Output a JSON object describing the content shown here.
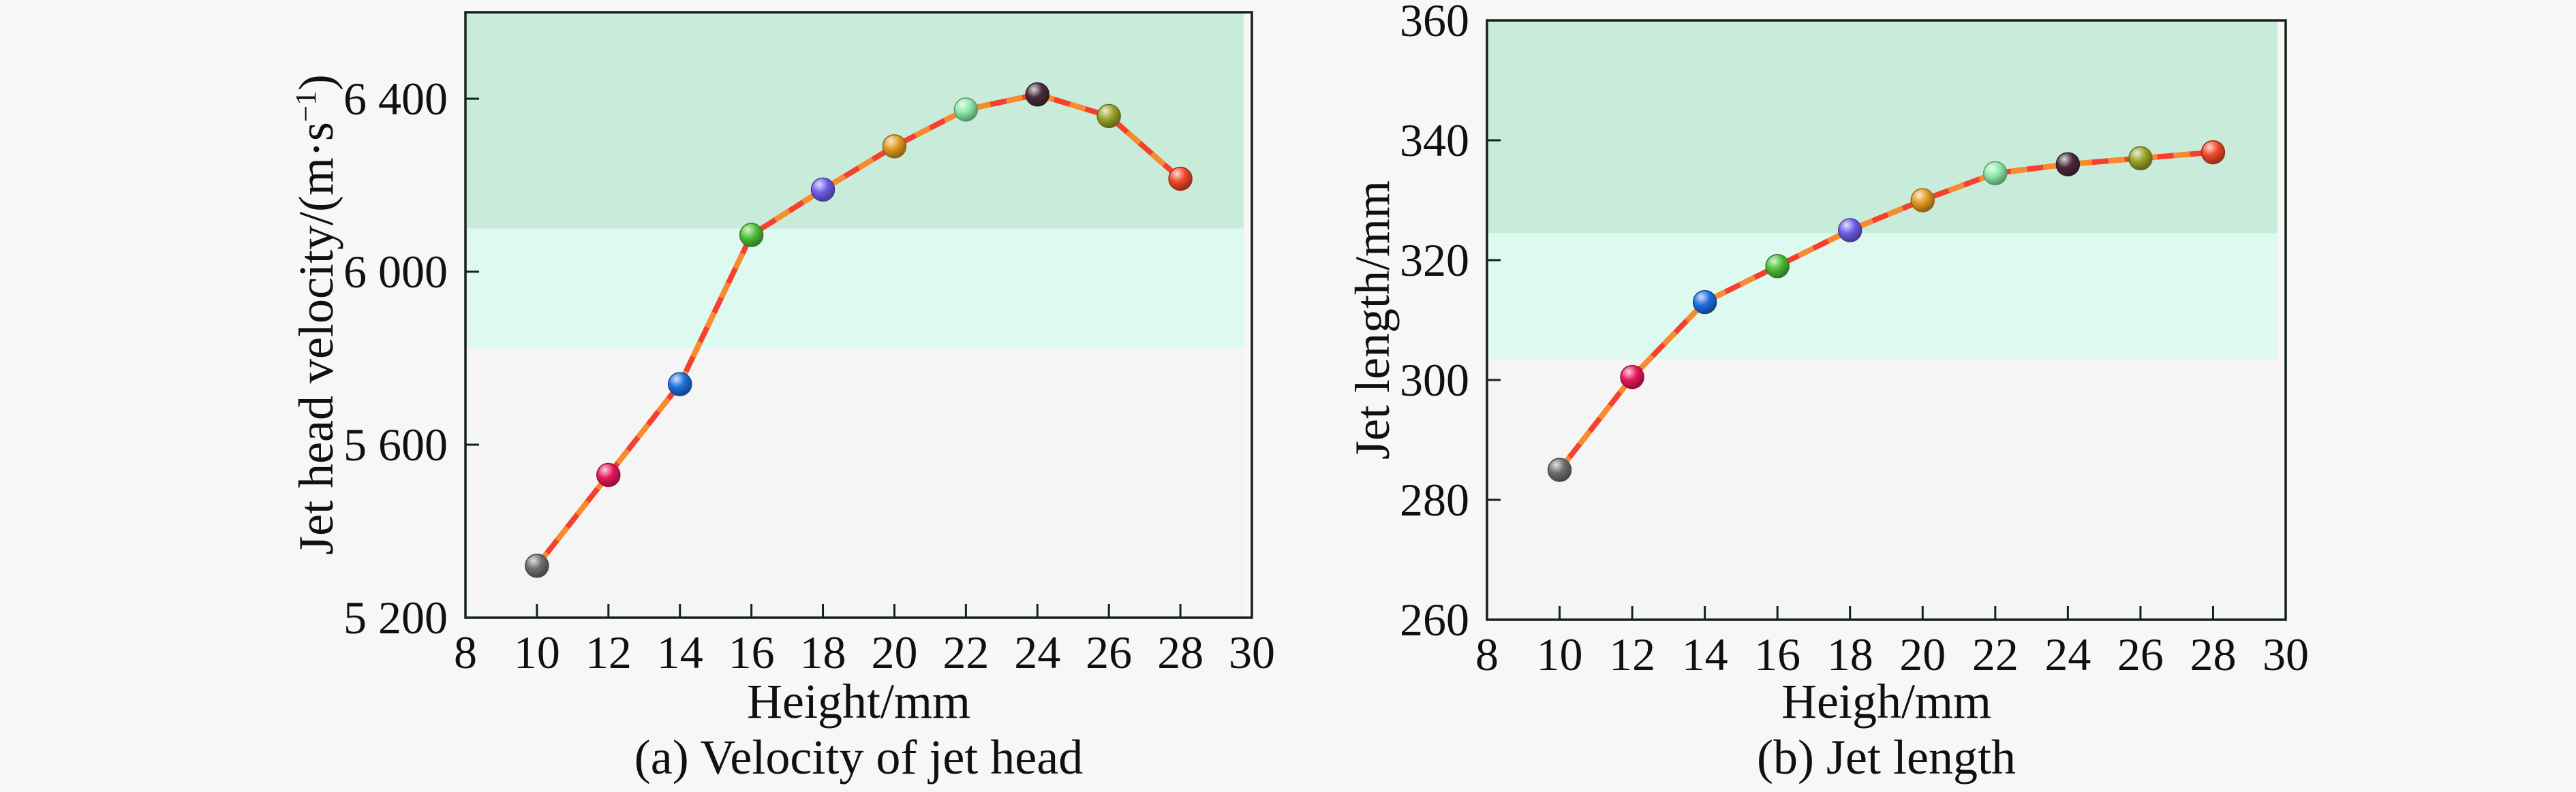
{
  "figure": {
    "background": "#f6f7f6",
    "border_color": "#14211a",
    "tick_label_font_px": 68
  },
  "labels": [
    {
      "ylabel_main": "Jet head velocity/(m·s",
      "ylabel_sup": "−1",
      "ylabel_end": ")",
      "xlabel": "Height/mm",
      "caption": "(a) Velocity of jet head"
    },
    {
      "ylabel_main": "Jet length/mm",
      "ylabel_sup": "",
      "ylabel_end": "",
      "xlabel": "Heigh/mm",
      "caption": "(b) Jet length"
    }
  ],
  "chart_data": [
    {
      "type": "line",
      "title": "(a) Velocity of jet head",
      "xlabel": "Height/mm",
      "ylabel": "Jet head velocity/(m·s−1)",
      "x": [
        10,
        12,
        14,
        16,
        18,
        20,
        22,
        24,
        26,
        28
      ],
      "y": [
        5320,
        5530,
        5740,
        6085,
        6190,
        6290,
        6375,
        6410,
        6360,
        6215
      ],
      "xlim": [
        8,
        30
      ],
      "ylim": [
        5200,
        6600
      ],
      "xticks": [
        8,
        10,
        12,
        14,
        16,
        18,
        20,
        22,
        24,
        26,
        28,
        30
      ],
      "xtick_labels": [
        "8",
        "10",
        "12",
        "14",
        "16",
        "18",
        "20",
        "22",
        "24",
        "26",
        "28",
        "30"
      ],
      "yticks": [
        5200,
        5600,
        6000,
        6400
      ],
      "ytick_labels": [
        "5 200",
        "5 600",
        "6 000",
        "6 400"
      ],
      "grid": false,
      "legend": "none",
      "line": {
        "base_color": "#f5402e",
        "dash_color": "#f78b2d",
        "width": 8,
        "dash": "24 24"
      },
      "point_radius": 17,
      "point_colors": [
        "#6e6e70",
        "#e8175d",
        "#1e6fe0",
        "#4fbe38",
        "#6f5ce8",
        "#e09a20",
        "#8ce9a9",
        "#4a2a3c",
        "#9aa428",
        "#f04828"
      ],
      "bands": [
        {
          "from": 6100,
          "to": 6600,
          "color": "#c8ecd9"
        },
        {
          "from": 5825,
          "to": 6100,
          "color": "#def9f0"
        },
        {
          "from": 5200,
          "to": 5825,
          "color": "#f4f5f4"
        }
      ]
    },
    {
      "type": "line",
      "title": "(b) Jet length",
      "xlabel": "Heigh/mm",
      "ylabel": "Jet length/mm",
      "x": [
        10,
        12,
        14,
        16,
        18,
        20,
        22,
        24,
        26,
        28
      ],
      "y": [
        285,
        300.5,
        313,
        319,
        325,
        330,
        334.5,
        336,
        337,
        338
      ],
      "xlim": [
        8,
        30
      ],
      "ylim": [
        260,
        360
      ],
      "xticks": [
        8,
        10,
        12,
        14,
        16,
        18,
        20,
        22,
        24,
        26,
        28,
        30
      ],
      "xtick_labels": [
        "8",
        "10",
        "12",
        "14",
        "16",
        "18",
        "20",
        "22",
        "24",
        "26",
        "28",
        "30"
      ],
      "yticks": [
        260,
        280,
        300,
        320,
        340,
        360
      ],
      "ytick_labels": [
        "260",
        "280",
        "300",
        "320",
        "340",
        "360"
      ],
      "grid": false,
      "legend": "none",
      "line": {
        "base_color": "#f5402e",
        "dash_color": "#f78b2d",
        "width": 8,
        "dash": "24 24"
      },
      "point_radius": 17,
      "point_colors": [
        "#6e6e70",
        "#e8175d",
        "#1e6fe0",
        "#4fbe38",
        "#6f5ce8",
        "#e09a20",
        "#8ce9a9",
        "#4a2a3c",
        "#9aa428",
        "#f04828"
      ],
      "bands": [
        {
          "from": 324.5,
          "to": 360,
          "color": "#c8ecd9"
        },
        {
          "from": 303.5,
          "to": 324.5,
          "color": "#def9f0"
        },
        {
          "from": 260,
          "to": 303.5,
          "color": "#f4f5f4"
        }
      ]
    }
  ]
}
